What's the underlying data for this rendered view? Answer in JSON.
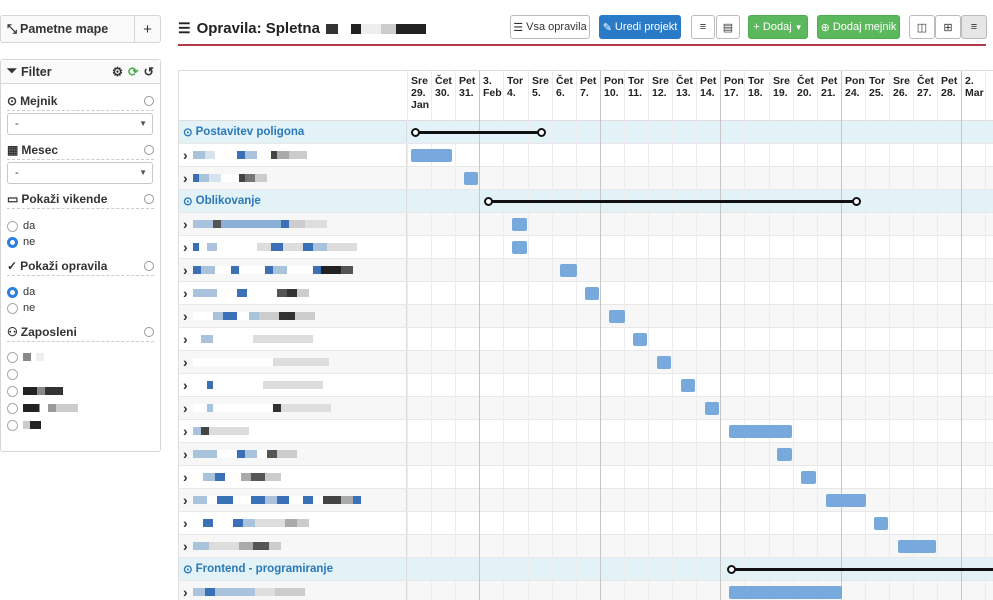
{
  "sidebar": {
    "mind_maps": "Pametne mape",
    "add": "+",
    "filter_title": "Filter",
    "milestone_label": "Mejnik",
    "milestone_value": "-",
    "month_label": "Mesec",
    "month_value": "-",
    "weekends_label": "Pokaži vikende",
    "weekends_opt_yes": "da",
    "weekends_opt_no": "ne",
    "tasks_label": "Pokaži opravila",
    "tasks_opt_yes": "da",
    "tasks_opt_no": "ne",
    "employees_label": "Zaposleni"
  },
  "header": {
    "title": "Opravila: Spletna",
    "all_tasks": "Vsa opravila",
    "edit_project": "Uredi projekt",
    "add": "+ Dodaj",
    "add_milestone": "Dodaj mejnik"
  },
  "colors": {
    "accent_blue": "#2a7bc7",
    "green": "#5cb85c",
    "bar": "#77a9dc",
    "title_line": "#b23a4a"
  },
  "days": [
    [
      "Sre",
      "29.",
      "Jan"
    ],
    [
      "Čet",
      "30."
    ],
    [
      "Pet",
      "31."
    ],
    [
      "3.",
      "Feb"
    ],
    [
      "Tor",
      "4."
    ],
    [
      "Sre",
      "5."
    ],
    [
      "Čet",
      "6."
    ],
    [
      "Pet",
      "7."
    ],
    [
      "Pon",
      "10."
    ],
    [
      "Tor",
      "11."
    ],
    [
      "Sre",
      "12."
    ],
    [
      "Čet",
      "13."
    ],
    [
      "Pet",
      "14."
    ],
    [
      "Pon",
      "17."
    ],
    [
      "Tor",
      "18."
    ],
    [
      "Sre",
      "19."
    ],
    [
      "Čet",
      "20."
    ],
    [
      "Pet",
      "21."
    ],
    [
      "Pon",
      "24."
    ],
    [
      "Tor",
      "25."
    ],
    [
      "Sre",
      "26."
    ],
    [
      "Čet",
      "27."
    ],
    [
      "Pet",
      "28."
    ],
    [
      "2.",
      "Mar"
    ]
  ],
  "groups": [
    "Postavitev poligona",
    "Oblikovanje",
    "Frontend - programiranje"
  ]
}
